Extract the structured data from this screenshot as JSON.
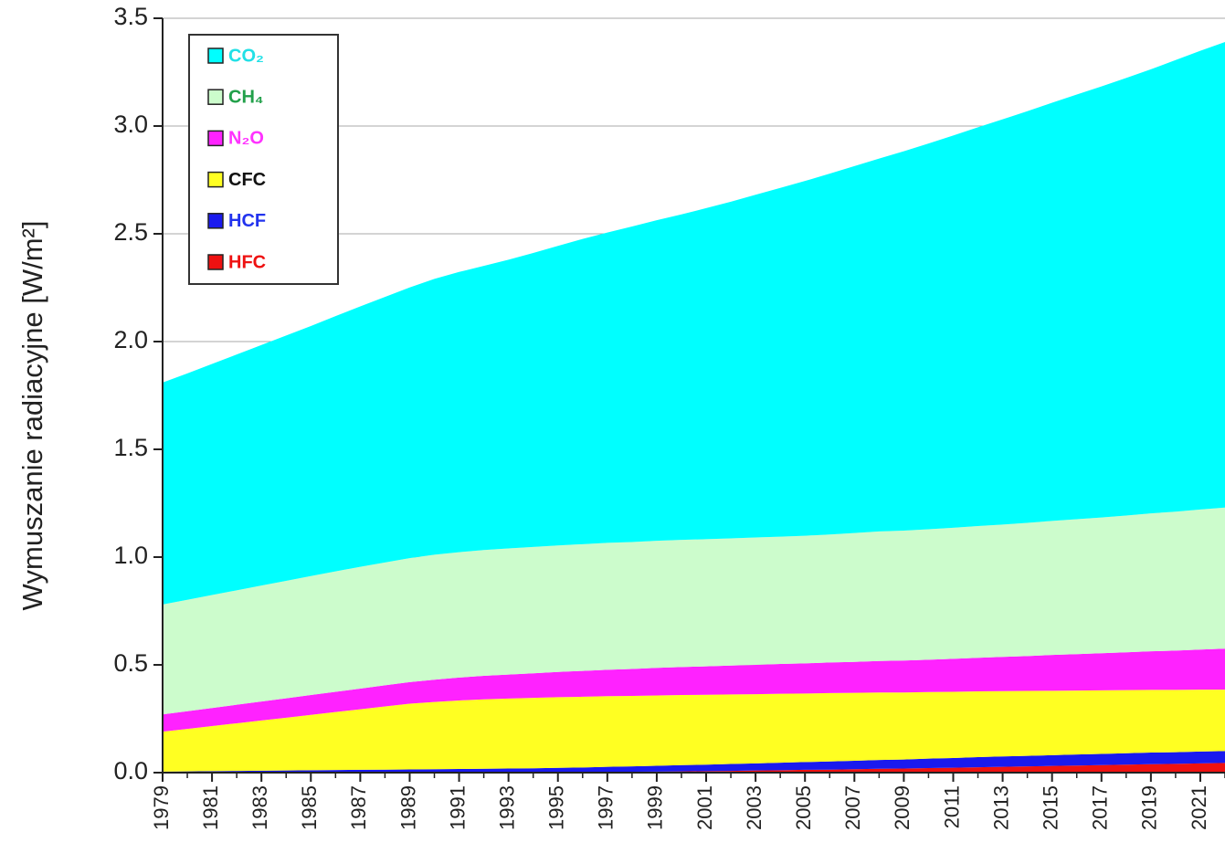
{
  "chart_data": {
    "type": "stacked_area",
    "y_label": "Wymuszanie radiacyjne [W/m²]",
    "x": [
      1979,
      1980,
      1981,
      1982,
      1983,
      1984,
      1985,
      1986,
      1987,
      1988,
      1989,
      1990,
      1991,
      1992,
      1993,
      1994,
      1995,
      1996,
      1997,
      1998,
      1999,
      2000,
      2001,
      2002,
      2003,
      2004,
      2005,
      2006,
      2007,
      2008,
      2009,
      2010,
      2011,
      2012,
      2013,
      2014,
      2015,
      2016,
      2017,
      2018,
      2019,
      2020,
      2021,
      2022
    ],
    "xlim": [
      1979,
      2022
    ],
    "xticks": [
      1979,
      1981,
      1983,
      1985,
      1987,
      1989,
      1991,
      1993,
      1995,
      1997,
      1999,
      2001,
      2003,
      2005,
      2007,
      2009,
      2011,
      2013,
      2015,
      2017,
      2019,
      2021
    ],
    "ylim": [
      0,
      3.5
    ],
    "yticks": [
      {
        "value": 0,
        "label": "0.0"
      },
      0.5,
      {
        "value": 1,
        "label": "1.0"
      },
      1.5,
      {
        "value": 2,
        "label": "2.0"
      },
      2.5,
      {
        "value": 3,
        "label": "3.0"
      },
      3.5
    ],
    "grid": true,
    "legend": "upper left",
    "series": [
      {
        "name": "CO₂",
        "color": "#00ffff",
        "label_color": "#22e0e6",
        "values": [
          1.03,
          1.05,
          1.072,
          1.094,
          1.116,
          1.138,
          1.16,
          1.184,
          1.208,
          1.232,
          1.256,
          1.28,
          1.3,
          1.318,
          1.34,
          1.364,
          1.39,
          1.416,
          1.44,
          1.464,
          1.487,
          1.51,
          1.536,
          1.562,
          1.59,
          1.618,
          1.646,
          1.674,
          1.702,
          1.73,
          1.76,
          1.79,
          1.82,
          1.85,
          1.88,
          1.91,
          1.94,
          1.97,
          2.0,
          2.03,
          2.06,
          2.095,
          2.128,
          2.16
        ]
      },
      {
        "name": "CH₄",
        "color": "#ccfccc",
        "label_color": "#22a04a",
        "values": [
          0.51,
          0.517,
          0.524,
          0.531,
          0.538,
          0.545,
          0.552,
          0.559,
          0.565,
          0.57,
          0.575,
          0.58,
          0.582,
          0.584,
          0.585,
          0.586,
          0.587,
          0.588,
          0.589,
          0.589,
          0.59,
          0.59,
          0.59,
          0.59,
          0.591,
          0.591,
          0.592,
          0.594,
          0.598,
          0.601,
          0.603,
          0.605,
          0.608,
          0.611,
          0.614,
          0.618,
          0.622,
          0.626,
          0.63,
          0.635,
          0.64,
          0.645,
          0.65,
          0.655
        ]
      },
      {
        "name": "N₂O",
        "color": "#ff22ff",
        "label_color": "#ff33ff",
        "values": [
          0.08,
          0.082,
          0.084,
          0.086,
          0.088,
          0.09,
          0.092,
          0.094,
          0.096,
          0.098,
          0.1,
          0.103,
          0.106,
          0.109,
          0.111,
          0.114,
          0.117,
          0.12,
          0.122,
          0.125,
          0.128,
          0.13,
          0.132,
          0.134,
          0.136,
          0.138,
          0.14,
          0.142,
          0.144,
          0.146,
          0.148,
          0.15,
          0.153,
          0.156,
          0.159,
          0.162,
          0.166,
          0.169,
          0.172,
          0.175,
          0.179,
          0.182,
          0.186,
          0.19
        ]
      },
      {
        "name": "CFC",
        "color": "#ffff22",
        "label_color": "#111111",
        "values": [
          0.185,
          0.197,
          0.209,
          0.221,
          0.233,
          0.245,
          0.257,
          0.269,
          0.281,
          0.293,
          0.305,
          0.312,
          0.318,
          0.322,
          0.325,
          0.327,
          0.328,
          0.328,
          0.328,
          0.327,
          0.326,
          0.325,
          0.324,
          0.323,
          0.321,
          0.32,
          0.318,
          0.317,
          0.315,
          0.313,
          0.311,
          0.309,
          0.307,
          0.305,
          0.303,
          0.301,
          0.299,
          0.297,
          0.295,
          0.293,
          0.291,
          0.289,
          0.287,
          0.285
        ]
      },
      {
        "name": "HCF",
        "color": "#1a1aee",
        "label_color": "#2233ee",
        "values": [
          0.005,
          0.006,
          0.007,
          0.008,
          0.009,
          0.01,
          0.011,
          0.012,
          0.013,
          0.014,
          0.015,
          0.016,
          0.017,
          0.018,
          0.019,
          0.02,
          0.021,
          0.022,
          0.024,
          0.025,
          0.027,
          0.029,
          0.03,
          0.032,
          0.033,
          0.035,
          0.036,
          0.038,
          0.039,
          0.041,
          0.042,
          0.044,
          0.045,
          0.047,
          0.048,
          0.049,
          0.05,
          0.051,
          0.052,
          0.053,
          0.054,
          0.054,
          0.055,
          0.055
        ]
      },
      {
        "name": "HFC",
        "color": "#ee1111",
        "label_color": "#ee1111",
        "values": [
          0,
          0,
          0,
          0,
          0,
          0,
          0,
          0,
          0,
          0,
          0,
          0,
          0,
          0,
          0,
          0,
          0.001,
          0.002,
          0.003,
          0.004,
          0.005,
          0.006,
          0.007,
          0.008,
          0.01,
          0.011,
          0.013,
          0.014,
          0.016,
          0.018,
          0.019,
          0.021,
          0.023,
          0.025,
          0.027,
          0.029,
          0.031,
          0.033,
          0.035,
          0.037,
          0.039,
          0.041,
          0.043,
          0.045
        ]
      }
    ]
  }
}
